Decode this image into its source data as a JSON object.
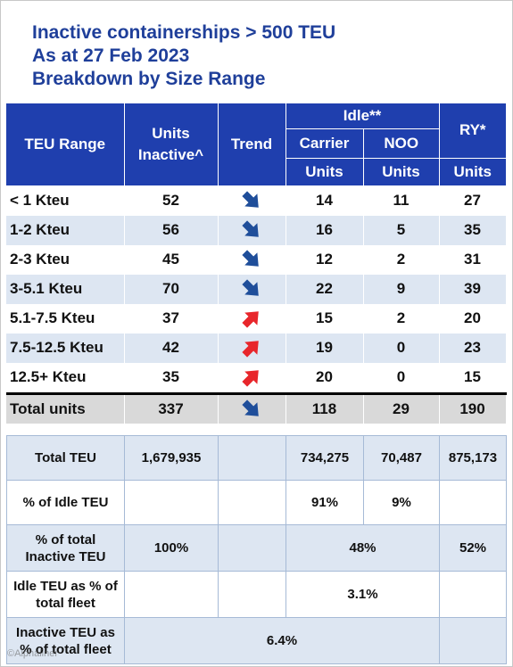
{
  "title": {
    "line1": "Inactive containerships > 500 TEU",
    "line2": "As at 27 Feb 2023",
    "line3": "Breakdown by Size Range"
  },
  "header": {
    "teu_range": "TEU Range",
    "units_line1": "Units",
    "units_line2": "Inactive^",
    "trend": "Trend",
    "idle": "Idle**",
    "ry": "RY*",
    "carrier": "Carrier",
    "noo": "NOO",
    "carrier_units": "Units",
    "noo_units": "Units",
    "ry_units": "Units"
  },
  "rows": [
    {
      "range": "< 1 Kteu",
      "units": "52",
      "trend": "down",
      "carrier": "14",
      "noo": "11",
      "ry": "27"
    },
    {
      "range": "1-2 Kteu",
      "units": "56",
      "trend": "down",
      "carrier": "16",
      "noo": "5",
      "ry": "35"
    },
    {
      "range": "2-3 Kteu",
      "units": "45",
      "trend": "down",
      "carrier": "12",
      "noo": "2",
      "ry": "31"
    },
    {
      "range": "3-5.1 Kteu",
      "units": "70",
      "trend": "down",
      "carrier": "22",
      "noo": "9",
      "ry": "39"
    },
    {
      "range": "5.1-7.5 Kteu",
      "units": "37",
      "trend": "up",
      "carrier": "15",
      "noo": "2",
      "ry": "20"
    },
    {
      "range": "7.5-12.5 Kteu",
      "units": "42",
      "trend": "up",
      "carrier": "19",
      "noo": "0",
      "ry": "23"
    },
    {
      "range": "12.5+ Kteu",
      "units": "35",
      "trend": "up",
      "carrier": "20",
      "noo": "0",
      "ry": "15"
    }
  ],
  "total": {
    "range": "Total units",
    "units": "337",
    "trend": "down",
    "carrier": "118",
    "noo": "29",
    "ry": "190"
  },
  "summary": {
    "total_teu": {
      "label": "Total TEU",
      "inactive": "1,679,935",
      "carrier": "734,275",
      "noo": "70,487",
      "ry": "875,173"
    },
    "pct_idle": {
      "label": "% of Idle TEU",
      "carrier": "91%",
      "noo": "9%"
    },
    "pct_total_inactive": {
      "label_line1": "% of total",
      "label_line2": "Inactive TEU",
      "inactive": "100%",
      "idle": "48%",
      "ry": "52%"
    },
    "idle_pct_fleet": {
      "label_line1": "Idle TEU as % of",
      "label_line2": "total fleet",
      "value": "3.1%"
    },
    "inactive_pct_fleet": {
      "label_line1": "Inactive TEU as",
      "label_line2": "% of total fleet",
      "value": "6.4%"
    }
  },
  "colors": {
    "header_blue": "#1f3fae",
    "title_blue": "#1f3f9a",
    "row_stripe": "#dde6f2",
    "arrow_down": "#1f4e9a",
    "arrow_up": "#e8262b"
  },
  "watermark": "©Alphaliner"
}
